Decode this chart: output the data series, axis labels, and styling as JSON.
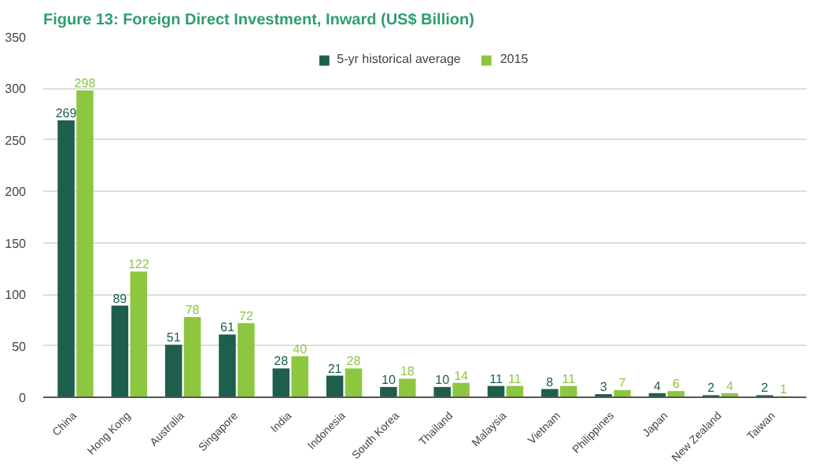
{
  "chart_data": {
    "type": "bar",
    "title": "Figure 13:  Foreign Direct Investment, Inward (US$ Billion)",
    "categories": [
      "China",
      "Hong Kong",
      "Australia",
      "Singapore",
      "India",
      "Indonesia",
      "South Korea",
      "Thailand",
      "Malaysia",
      "Vietnam",
      "Philippines",
      "Japan",
      "New Zealand",
      "Taiwan"
    ],
    "series": [
      {
        "name": "5-yr historical average",
        "color": "#1d5e4c",
        "values": [
          269,
          89,
          51,
          61,
          28,
          21,
          10,
          10,
          11,
          8,
          3,
          4,
          2,
          2
        ]
      },
      {
        "name": "2015",
        "color": "#8dc63f",
        "values": [
          298,
          122,
          78,
          72,
          40,
          28,
          18,
          14,
          11,
          11,
          7,
          6,
          4,
          1
        ]
      }
    ],
    "ylim": [
      0,
      350
    ],
    "yticks": [
      0,
      50,
      100,
      150,
      200,
      250,
      300,
      350
    ],
    "grid": "y",
    "legend": "top",
    "data_labels": true
  }
}
